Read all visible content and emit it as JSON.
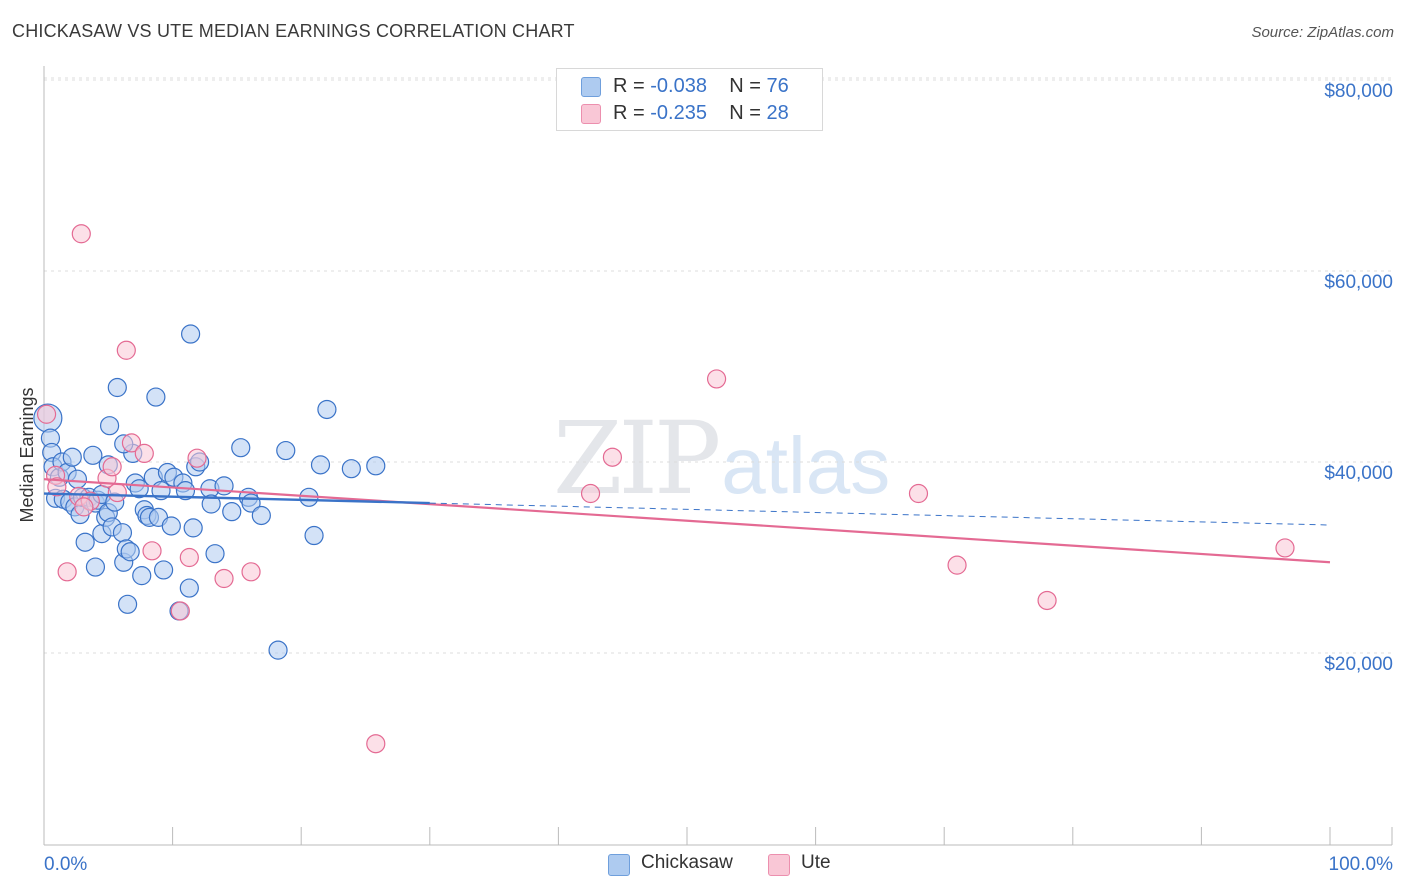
{
  "header": {
    "title": "CHICKASAW VS UTE MEDIAN EARNINGS CORRELATION CHART",
    "source": "Source: ZipAtlas.com"
  },
  "watermark": {
    "zip": "ZIP",
    "atlas": "atlas"
  },
  "legend": {
    "rows": [
      {
        "r_label": "R =",
        "r_value": "-0.038",
        "n_label": "N =",
        "n_value": "76",
        "color": "#aecbf0",
        "border": "#6f9fdc"
      },
      {
        "r_label": "R =",
        "r_value": "-0.235",
        "n_label": "N =",
        "n_value": "28",
        "color": "#f9c7d6",
        "border": "#ec8fae"
      }
    ]
  },
  "bottom_legend": [
    {
      "label": "Chickasaw",
      "color": "#aecbf0",
      "border": "#6f9fdc"
    },
    {
      "label": "Ute",
      "color": "#f9c7d6",
      "border": "#ec8fae"
    }
  ],
  "chart_data": {
    "type": "scatter",
    "title": "CHICKASAW VS UTE MEDIAN EARNINGS CORRELATION CHART",
    "xlabel": "",
    "ylabel": "Median Earnings",
    "xlim": [
      0,
      100
    ],
    "ylim": [
      2000,
      82000
    ],
    "x_tick_labels": [
      "0.0%",
      "100.0%"
    ],
    "y_ticks": [
      20000,
      40000,
      60000,
      80000
    ],
    "y_tick_labels": [
      "$20,000",
      "$40,000",
      "$60,000",
      "$80,000"
    ],
    "grid": true,
    "colors": {
      "chickasaw": "#3a73c8",
      "chickasaw_fill": "#aecbf0",
      "ute": "#e46a93",
      "ute_fill": "#f9c7d6"
    },
    "series": [
      {
        "name": "Chickasaw",
        "r": -0.038,
        "n": 76,
        "trend": {
          "x0": 0,
          "y0": 36700,
          "x1": 30,
          "y1": 35700,
          "dash_to_x": 100,
          "dash_to_y": 33400
        },
        "points": [
          [
            0.3,
            44600,
            14
          ],
          [
            0.5,
            42500,
            9
          ],
          [
            0.6,
            41000,
            9
          ],
          [
            0.7,
            39500,
            9
          ],
          [
            0.9,
            36200,
            9
          ],
          [
            1.2,
            38400,
            9
          ],
          [
            1.4,
            40000,
            9
          ],
          [
            1.5,
            36100,
            9
          ],
          [
            1.8,
            38900,
            9
          ],
          [
            2.0,
            35800,
            9
          ],
          [
            2.2,
            40500,
            9
          ],
          [
            2.4,
            35300,
            9
          ],
          [
            2.6,
            38200,
            9
          ],
          [
            2.8,
            34500,
            9
          ],
          [
            3.0,
            36300,
            9
          ],
          [
            3.2,
            31600,
            9
          ],
          [
            3.5,
            36300,
            9
          ],
          [
            3.8,
            40700,
            9
          ],
          [
            4.0,
            35700,
            9
          ],
          [
            4.0,
            29000,
            9
          ],
          [
            4.2,
            36000,
            9
          ],
          [
            4.5,
            36600,
            9
          ],
          [
            4.5,
            32500,
            9
          ],
          [
            4.8,
            34200,
            9
          ],
          [
            5.0,
            39700,
            9
          ],
          [
            5.0,
            34700,
            9
          ],
          [
            5.1,
            43800,
            9
          ],
          [
            5.3,
            33200,
            9
          ],
          [
            5.5,
            35800,
            9
          ],
          [
            5.7,
            47800,
            9
          ],
          [
            6.1,
            32600,
            9
          ],
          [
            6.2,
            29500,
            9
          ],
          [
            6.4,
            30900,
            9
          ],
          [
            6.5,
            25100,
            9
          ],
          [
            6.7,
            30600,
            9
          ],
          [
            6.9,
            40900,
            9
          ],
          [
            7.1,
            37800,
            9
          ],
          [
            7.4,
            37200,
            9
          ],
          [
            7.6,
            28100,
            9
          ],
          [
            7.8,
            35000,
            9
          ],
          [
            8.0,
            34400,
            9
          ],
          [
            8.2,
            34200,
            9
          ],
          [
            8.5,
            38400,
            9
          ],
          [
            8.7,
            46800,
            9
          ],
          [
            8.9,
            34200,
            9
          ],
          [
            9.1,
            37000,
            9
          ],
          [
            9.3,
            28700,
            9
          ],
          [
            9.6,
            38900,
            9
          ],
          [
            9.9,
            33300,
            9
          ],
          [
            10.1,
            38400,
            9
          ],
          [
            10.5,
            24400,
            9
          ],
          [
            10.8,
            37800,
            9
          ],
          [
            11.0,
            37000,
            9
          ],
          [
            11.3,
            26800,
            9
          ],
          [
            11.6,
            33100,
            9
          ],
          [
            11.4,
            53400,
            9
          ],
          [
            11.8,
            39500,
            9
          ],
          [
            12.1,
            40000,
            9
          ],
          [
            12.9,
            37200,
            9
          ],
          [
            13.0,
            35600,
            9
          ],
          [
            13.3,
            30400,
            9
          ],
          [
            14.6,
            34800,
            9
          ],
          [
            15.3,
            41500,
            9
          ],
          [
            15.9,
            36300,
            9
          ],
          [
            16.1,
            35700,
            9
          ],
          [
            16.9,
            34400,
            9
          ],
          [
            18.2,
            20300,
            9
          ],
          [
            18.8,
            41200,
            9
          ],
          [
            20.6,
            36300,
            9
          ],
          [
            21.0,
            32300,
            9
          ],
          [
            21.5,
            39700,
            9
          ],
          [
            22.0,
            45500,
            9
          ],
          [
            23.9,
            39300,
            9
          ],
          [
            25.8,
            39600,
            9
          ],
          [
            6.2,
            41900,
            9
          ],
          [
            14.0,
            37500,
            9
          ]
        ]
      },
      {
        "name": "Ute",
        "r": -0.235,
        "n": 28,
        "trend": {
          "x0": 0,
          "y0": 38200,
          "x1": 100,
          "y1": 29500
        },
        "points": [
          [
            0.2,
            45000,
            9
          ],
          [
            0.9,
            38600,
            9
          ],
          [
            1.8,
            28500,
            9
          ],
          [
            2.7,
            36400,
            9
          ],
          [
            2.9,
            63900,
            9
          ],
          [
            3.6,
            35900,
            9
          ],
          [
            4.9,
            38300,
            9
          ],
          [
            5.3,
            39500,
            9
          ],
          [
            5.7,
            36800,
            9
          ],
          [
            6.4,
            51700,
            9
          ],
          [
            6.8,
            42000,
            9
          ],
          [
            7.8,
            40900,
            9
          ],
          [
            8.4,
            30700,
            9
          ],
          [
            10.6,
            24400,
            9
          ],
          [
            11.3,
            30000,
            9
          ],
          [
            11.9,
            40400,
            9
          ],
          [
            14.0,
            27800,
            9
          ],
          [
            16.1,
            28500,
            9
          ],
          [
            25.8,
            10500,
            9
          ],
          [
            42.5,
            36700,
            9
          ],
          [
            44.2,
            40500,
            9
          ],
          [
            52.3,
            48700,
            9
          ],
          [
            68.0,
            36700,
            9
          ],
          [
            71.0,
            29200,
            9
          ],
          [
            78.0,
            25500,
            9
          ],
          [
            96.5,
            31000,
            9
          ],
          [
            1.0,
            37400,
            9
          ],
          [
            3.1,
            35300,
            9
          ]
        ]
      }
    ]
  }
}
